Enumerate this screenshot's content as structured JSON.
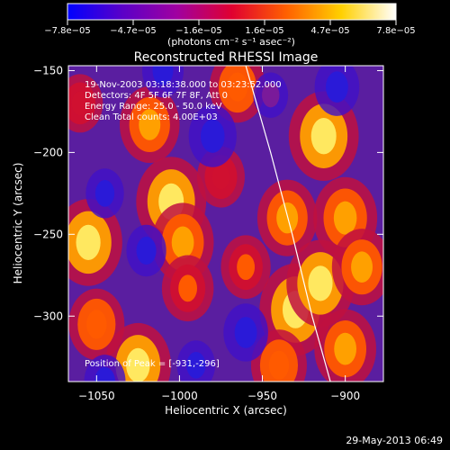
{
  "chart_data": {
    "type": "heatmap",
    "title": "Reconstructed RHESSI Image",
    "xlabel": "Heliocentric X (arcsec)",
    "ylabel": "Heliocentric Y (arcsec)",
    "xlim": [
      -1067,
      -877
    ],
    "ylim": [
      -340,
      -147
    ],
    "x_ticks": [
      -1050,
      -1000,
      -950,
      -900
    ],
    "y_ticks": [
      -150,
      -200,
      -250,
      -300
    ],
    "x_tick_labels": [
      "−1050",
      "−1000",
      "−950",
      "−900"
    ],
    "y_tick_labels": [
      "−150",
      "−200",
      "−250",
      "−300"
    ],
    "colorbar": {
      "range": [
        -7.8e-05,
        7.8e-05
      ],
      "tick_labels": [
        "−7.8e−05",
        "−4.7e−05",
        "−1.6e−05",
        "1.6e−05",
        "4.7e−05",
        "7.8e−05"
      ],
      "unit_label": "(photons cm⁻² s⁻¹ asec⁻²)",
      "colors": [
        "#0000ff",
        "#5a00c8",
        "#a000a0",
        "#e00030",
        "#ff6000",
        "#ffd000",
        "#ffffff"
      ]
    },
    "annotations": [
      "19-Nov-2003 03:18:38.000 to 03:23:52.000",
      "Detectors: 4F 5F 6F 7F 8F, Att 0",
      "Energy Range: 25.0 - 50.0 keV",
      "Clean    Total counts: 4.00E+03"
    ],
    "peak_label": "Position of Peak = [-931,-296]",
    "peak": [
      -931,
      -296
    ],
    "limb_curve": [
      [
        -960,
        -147
      ],
      [
        -945,
        -200
      ],
      [
        -932,
        -250
      ],
      [
        -920,
        -300
      ],
      [
        -909,
        -340
      ]
    ],
    "blobs": [
      {
        "x": -1055,
        "y": -255,
        "v": 0.9
      },
      {
        "x": -1050,
        "y": -305,
        "v": 0.6
      },
      {
        "x": -1018,
        "y": -183,
        "v": 0.7
      },
      {
        "x": -1005,
        "y": -230,
        "v": 0.95
      },
      {
        "x": -998,
        "y": -255,
        "v": 0.75
      },
      {
        "x": -995,
        "y": -283,
        "v": 0.5
      },
      {
        "x": -1025,
        "y": -330,
        "v": 0.85
      },
      {
        "x": -965,
        "y": -160,
        "v": 0.6
      },
      {
        "x": -960,
        "y": -270,
        "v": 0.45
      },
      {
        "x": -935,
        "y": -240,
        "v": 0.7
      },
      {
        "x": -930,
        "y": -296,
        "v": 1.0
      },
      {
        "x": -915,
        "y": -280,
        "v": 0.9
      },
      {
        "x": -913,
        "y": -190,
        "v": 0.95
      },
      {
        "x": -900,
        "y": -240,
        "v": 0.8
      },
      {
        "x": -890,
        "y": -270,
        "v": 0.7
      },
      {
        "x": -900,
        "y": -320,
        "v": 0.75
      },
      {
        "x": -940,
        "y": -330,
        "v": 0.6
      },
      {
        "x": -975,
        "y": -215,
        "v": 0.4
      },
      {
        "x": -1060,
        "y": -170,
        "v": 0.35
      },
      {
        "x": -1045,
        "y": -225,
        "v": -0.4
      },
      {
        "x": -1010,
        "y": -150,
        "v": -0.5
      },
      {
        "x": -980,
        "y": -190,
        "v": -0.7
      },
      {
        "x": -960,
        "y": -310,
        "v": -0.6
      },
      {
        "x": -1020,
        "y": -260,
        "v": -0.45
      },
      {
        "x": -905,
        "y": -160,
        "v": -0.6
      },
      {
        "x": -1045,
        "y": -340,
        "v": -0.5
      },
      {
        "x": -990,
        "y": -330,
        "v": -0.4
      },
      {
        "x": -945,
        "y": -165,
        "v": -0.3
      }
    ]
  },
  "footer": {
    "date": "29-May-2013 06:49"
  }
}
